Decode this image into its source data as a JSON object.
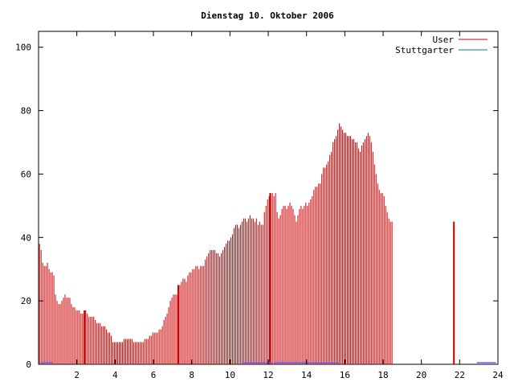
{
  "chart_data": {
    "type": "bar",
    "title": "Dienstag 10. Oktober 2006",
    "xlabel": "",
    "ylabel": "",
    "xlim": [
      0,
      24
    ],
    "ylim": [
      0,
      105
    ],
    "xticks": [
      2,
      4,
      6,
      8,
      10,
      12,
      14,
      16,
      18,
      20,
      22,
      24
    ],
    "yticks": [
      0,
      20,
      40,
      60,
      80,
      100
    ],
    "grid": false,
    "legend_position": "top-right",
    "colors": {
      "User": "#cc0000",
      "Stuttgarter": "#008080",
      "baseline_marker": "#6666ff"
    },
    "hour_markers": [
      2.4,
      7.3,
      12.1,
      21.7
    ],
    "baseline_segments": [
      [
        0.1,
        0.7
      ],
      [
        10.6,
        12.2
      ],
      [
        12.3,
        15.7
      ],
      [
        22.9,
        23.9
      ]
    ],
    "series": [
      {
        "name": "User",
        "x_start": 0,
        "x_step": 0.08333,
        "values": [
          38,
          36,
          32,
          31,
          31,
          32,
          30,
          29,
          29,
          28,
          22,
          20,
          19,
          19,
          20,
          21,
          22,
          21,
          21,
          21,
          19,
          18,
          18,
          17,
          17,
          17,
          16,
          16,
          16,
          17,
          16,
          15,
          15,
          15,
          15,
          14,
          13,
          13,
          13,
          12,
          12,
          12,
          11,
          10,
          10,
          9,
          7,
          7,
          7,
          7,
          7,
          7,
          7,
          8,
          8,
          8,
          8,
          8,
          8,
          7,
          7,
          7,
          7,
          7,
          7,
          7,
          8,
          8,
          8,
          9,
          9,
          10,
          10,
          10,
          10,
          11,
          11,
          12,
          14,
          15,
          16,
          18,
          20,
          21,
          22,
          22,
          22,
          24,
          25,
          26,
          27,
          27,
          26,
          28,
          29,
          29,
          30,
          30,
          31,
          31,
          30,
          31,
          31,
          31,
          33,
          34,
          35,
          36,
          36,
          36,
          36,
          35,
          35,
          34,
          35,
          36,
          37,
          38,
          39,
          39,
          40,
          41,
          43,
          44,
          44,
          43,
          44,
          45,
          46,
          46,
          45,
          46,
          47,
          46,
          46,
          45,
          46,
          44,
          45,
          44,
          44,
          48,
          50,
          52,
          53,
          54,
          54,
          53,
          54,
          48,
          46,
          47,
          49,
          50,
          50,
          49,
          50,
          51,
          50,
          49,
          47,
          45,
          47,
          49,
          50,
          49,
          50,
          51,
          50,
          51,
          52,
          53,
          55,
          56,
          56,
          57,
          57,
          60,
          62,
          62,
          63,
          64,
          66,
          67,
          70,
          71,
          72,
          74,
          76,
          75,
          74,
          73,
          73,
          72,
          72,
          72,
          71,
          71,
          70,
          70,
          68,
          67,
          69,
          70,
          71,
          72,
          73,
          72,
          70,
          67,
          63,
          60,
          57,
          55,
          54,
          54,
          53,
          50,
          48,
          46,
          45,
          45
        ]
      },
      {
        "name": "Stuttgarter",
        "values": []
      }
    ]
  }
}
